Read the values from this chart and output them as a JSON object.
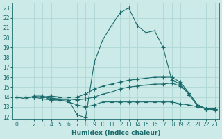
{
  "xlabel": "Humidex (Indice chaleur)",
  "bg_color": "#cceae8",
  "grid_color": "#b0d8d5",
  "line_color": "#1a6b6b",
  "xlim": [
    -0.5,
    23.5
  ],
  "ylim": [
    11.8,
    23.5
  ],
  "xticks": [
    0,
    1,
    2,
    3,
    4,
    5,
    6,
    7,
    8,
    9,
    10,
    11,
    12,
    13,
    14,
    15,
    16,
    17,
    18,
    19,
    20,
    21,
    22,
    23
  ],
  "yticks": [
    12,
    13,
    14,
    15,
    16,
    17,
    18,
    19,
    20,
    21,
    22,
    23
  ],
  "series": [
    [
      14.0,
      13.8,
      14.1,
      14.1,
      13.7,
      13.7,
      13.7,
      12.2,
      11.9,
      17.5,
      19.8,
      21.2,
      22.5,
      23.0,
      21.2,
      20.5,
      20.7,
      19.0,
      15.7,
      15.3,
      14.2,
      13.1,
      12.8,
      12.7
    ],
    [
      14.0,
      14.0,
      14.0,
      14.0,
      14.1,
      14.0,
      14.0,
      14.0,
      14.3,
      14.8,
      15.1,
      15.3,
      15.5,
      15.7,
      15.8,
      15.9,
      16.0,
      16.0,
      16.0,
      15.5,
      14.4,
      13.2,
      12.8,
      12.8
    ],
    [
      14.0,
      14.0,
      14.0,
      14.0,
      13.9,
      13.8,
      13.8,
      13.7,
      13.8,
      14.0,
      14.3,
      14.5,
      14.8,
      15.0,
      15.1,
      15.2,
      15.3,
      15.3,
      15.4,
      15.1,
      14.4,
      13.2,
      12.8,
      12.8
    ],
    [
      14.0,
      14.0,
      14.0,
      13.8,
      13.7,
      13.7,
      13.5,
      13.2,
      13.0,
      13.2,
      13.5,
      13.5,
      13.5,
      13.5,
      13.5,
      13.5,
      13.5,
      13.5,
      13.5,
      13.3,
      13.2,
      13.0,
      12.8,
      12.8
    ]
  ]
}
